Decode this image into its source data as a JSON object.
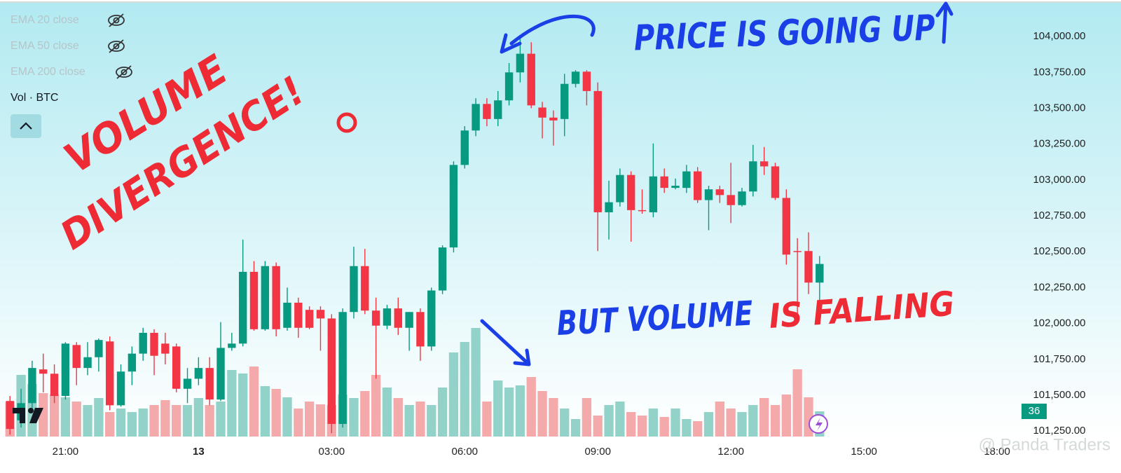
{
  "chart_data": {
    "type": "candlestick",
    "legend": [
      "EMA 20 close",
      "EMA 50 close",
      "EMA 200 close"
    ],
    "volume_title": "Vol · BTC",
    "up_color": "#089981",
    "down_color": "#f23645",
    "volume_up_color": "#92d2c8",
    "volume_down_color": "#f4a9ab",
    "open": [
      101460,
      101325,
      101445,
      101680,
      101650,
      101495,
      101850,
      101690,
      101765,
      101875,
      101430,
      101665,
      101790,
      101935,
      101860,
      101840,
      101545,
      101615,
      101690,
      101470,
      101830,
      101860,
      102360,
      101960,
      102400,
      101970,
      102145,
      102095,
      102095,
      102035,
      101300,
      102080,
      102400,
      102090,
      101985,
      102105,
      101970,
      102080,
      101840,
      102230,
      102530,
      103105,
      103345,
      103530,
      103425,
      103555,
      103750,
      103880,
      103505,
      103435,
      103425,
      103670,
      103755,
      103620,
      102775,
      102845,
      103035,
      102790,
      102775,
      103025,
      102945,
      102945,
      103060,
      102860,
      102935,
      102895,
      102825,
      102920,
      103130,
      103095,
      102875,
      102505,
      102505,
      102285
    ],
    "high": [
      101495,
      101545,
      101740,
      101790,
      101715,
      101870,
      101870,
      101870,
      101895,
      101910,
      101715,
      101840,
      101970,
      101960,
      101935,
      101860,
      101690,
      101765,
      101765,
      102010,
      101935,
      102585,
      102435,
      102435,
      102425,
      102250,
      102180,
      102120,
      102120,
      102065,
      102105,
      102535,
      102520,
      102180,
      102130,
      102180,
      102080,
      102105,
      102250,
      102545,
      103130,
      103375,
      103570,
      103570,
      103620,
      103815,
      103995,
      103960,
      103545,
      103485,
      103740,
      103765,
      103765,
      103680,
      102995,
      103080,
      103060,
      102935,
      103255,
      103080,
      103010,
      103105,
      103090,
      102960,
      102960,
      103120,
      102945,
      103245,
      103230,
      103120,
      102935,
      102595,
      102635,
      102470
    ],
    "low": [
      101225,
      101275,
      101375,
      101520,
      101445,
      101470,
      101570,
      101640,
      101665,
      101395,
      101420,
      101570,
      101740,
      101640,
      101715,
      101520,
      101445,
      101570,
      101430,
      101460,
      101810,
      101840,
      101950,
      101950,
      101910,
      101950,
      101900,
      101960,
      101810,
      101235,
      101275,
      102035,
      102065,
      101615,
      101960,
      101920,
      101810,
      101740,
      101810,
      102205,
      102495,
      103080,
      103305,
      103375,
      103375,
      103520,
      103680,
      103500,
      103290,
      103240,
      103305,
      103645,
      103520,
      102505,
      102585,
      102815,
      102570,
      102765,
      102740,
      102910,
      102935,
      102910,
      102840,
      102650,
      102840,
      102700,
      102815,
      102885,
      103035,
      102860,
      102410,
      102020,
      102205,
      102140
    ],
    "close": [
      101265,
      101445,
      101690,
      101650,
      101495,
      101860,
      101690,
      101765,
      101885,
      101430,
      101665,
      101790,
      101935,
      101775,
      101790,
      101545,
      101615,
      101690,
      101470,
      101830,
      101860,
      102360,
      101960,
      102400,
      101960,
      102145,
      101970,
      101970,
      102035,
      101300,
      102080,
      102400,
      102090,
      101985,
      102105,
      101970,
      102080,
      101840,
      102230,
      102530,
      103105,
      103345,
      103530,
      103425,
      103555,
      103750,
      103880,
      103520,
      103435,
      103415,
      103670,
      103755,
      103620,
      102775,
      102845,
      103035,
      102790,
      102785,
      103025,
      102945,
      102960,
      103060,
      102860,
      102935,
      102895,
      102825,
      102920,
      103130,
      103095,
      102875,
      102480,
      102500,
      102285,
      102415
    ],
    "volume": {
      "axis": "y2",
      "values": [
        50,
        88,
        75,
        62,
        60,
        56,
        50,
        45,
        55,
        35,
        40,
        35,
        40,
        45,
        52,
        45,
        45,
        55,
        45,
        50,
        95,
        90,
        100,
        72,
        68,
        56,
        40,
        50,
        46,
        45,
        60,
        55,
        65,
        88,
        70,
        55,
        45,
        50,
        45,
        70,
        120,
        135,
        155,
        50,
        80,
        70,
        73,
        85,
        65,
        55,
        40,
        25,
        55,
        30,
        45,
        50,
        35,
        30,
        40,
        28,
        40,
        25,
        22,
        35,
        50,
        40,
        35,
        45,
        55,
        45,
        60,
        96,
        56,
        36
      ]
    },
    "xlim": [
      -0.9,
      90.7
    ],
    "xticks": [
      {
        "value": 5,
        "label": "21:00"
      },
      {
        "value": 17,
        "label": "13"
      },
      {
        "value": 29,
        "label": "03:00"
      },
      {
        "value": 41,
        "label": "06:00"
      },
      {
        "value": 53,
        "label": "09:00"
      },
      {
        "value": 65,
        "label": "12:00"
      },
      {
        "value": 77,
        "label": "15:00"
      },
      {
        "value": 89,
        "label": "18:00"
      }
    ],
    "ylim": [
      101212,
      104230
    ],
    "yticks": [
      {
        "value": 101250,
        "label": "101,250.00"
      },
      {
        "value": 101500,
        "label": "101,500.00"
      },
      {
        "value": 101750,
        "label": "101,750.00"
      },
      {
        "value": 102000,
        "label": "102,000.00"
      },
      {
        "value": 102250,
        "label": "102,250.00"
      },
      {
        "value": 102500,
        "label": "102,500.00"
      },
      {
        "value": 102750,
        "label": "102,750.00"
      },
      {
        "value": 103000,
        "label": "103,000.00"
      },
      {
        "value": 103250,
        "label": "103,250.00"
      },
      {
        "value": 103500,
        "label": "103,500.00"
      },
      {
        "value": 103750,
        "label": "103,750.00"
      },
      {
        "value": 104000,
        "label": "104,000.00"
      }
    ],
    "y2lim": [
      0,
      618
    ],
    "annotations": [
      {
        "text": "VOLUME",
        "color": "#ee2a35"
      },
      {
        "text": "DIVERGENCE!",
        "color": "#ee2a35"
      },
      {
        "text": "PRICE IS GOING UP",
        "color": "#1b3fe6"
      },
      {
        "text": "BUT VOLUME",
        "color": "#1b3fe6"
      },
      {
        "text": "IS FALLING",
        "color": "#ee2a35"
      }
    ],
    "watermark": "@ Panda Traders"
  }
}
